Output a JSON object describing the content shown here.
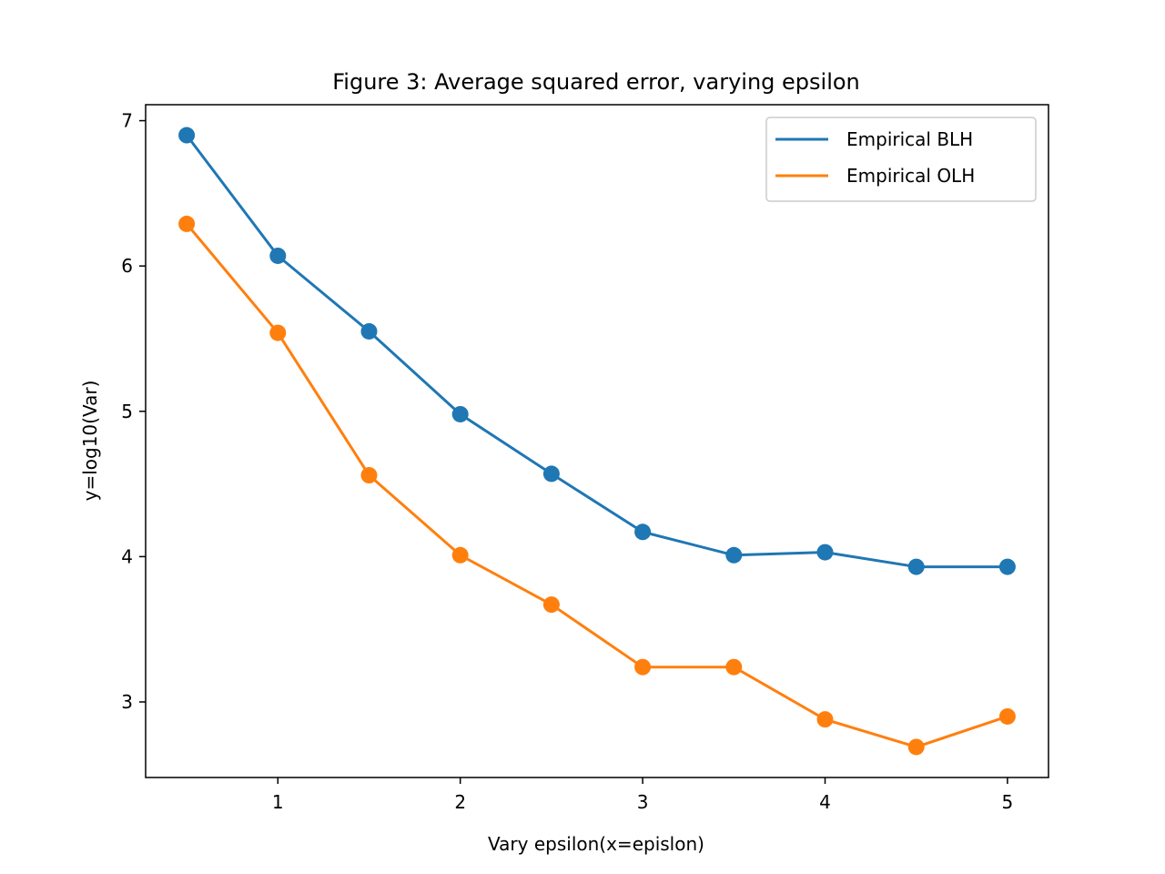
{
  "chart_data": {
    "type": "line",
    "title": "Figure 3: Average squared error, varying epsilon",
    "xlabel": "Vary epsilon(x=epislon)",
    "ylabel": "y=log10(Var)",
    "x": [
      0.5,
      1.0,
      1.5,
      2.0,
      2.5,
      3.0,
      3.5,
      4.0,
      4.5,
      5.0
    ],
    "xlim": [
      0.275,
      5.225
    ],
    "ylim": [
      2.48,
      7.11
    ],
    "xticks": [
      1,
      2,
      3,
      4,
      5
    ],
    "yticks": [
      3,
      4,
      5,
      6,
      7
    ],
    "grid": false,
    "legend_position": "top-right",
    "marker": "circle",
    "series": [
      {
        "name": "Empirical BLH",
        "color": "#1f77b4",
        "values": [
          6.9,
          6.07,
          5.55,
          4.98,
          4.57,
          4.17,
          4.01,
          4.03,
          3.93,
          3.93
        ]
      },
      {
        "name": "Empirical OLH",
        "color": "#ff7f0e",
        "values": [
          6.29,
          5.54,
          4.56,
          4.01,
          3.67,
          3.24,
          3.24,
          2.88,
          2.69,
          2.9
        ]
      }
    ]
  }
}
